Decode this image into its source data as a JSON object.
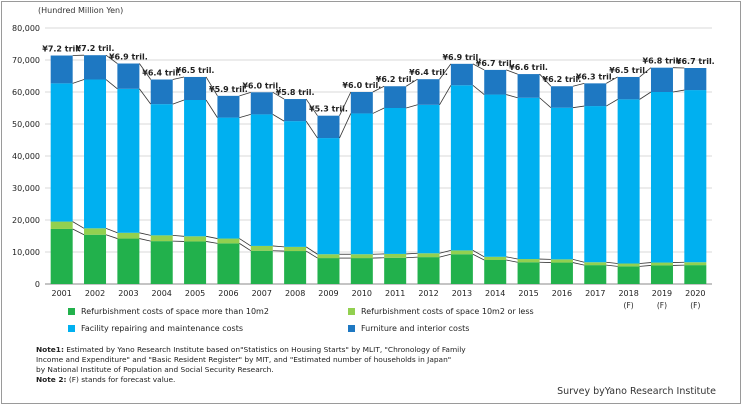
{
  "unit_label": "(Hundred  Million Yen)",
  "chart_data": {
    "type": "bar",
    "stacked": true,
    "categories": [
      "2001",
      "2002",
      "2003",
      "2004",
      "2005",
      "2006",
      "2007",
      "2008",
      "2009",
      "2010",
      "2011",
      "2012",
      "2013",
      "2014",
      "2015",
      "2016",
      "2017",
      "2018",
      "2019",
      "2020"
    ],
    "category_sublabels": [
      "",
      "",
      "",
      "",
      "",
      "",
      "",
      "",
      "",
      "",
      "",
      "",
      "",
      "",
      "",
      "",
      "",
      "(F)",
      "(F)",
      "(F)"
    ],
    "series": [
      {
        "name": "Refurbishment costs of space more than 10m2",
        "color": "#22b14c",
        "values": [
          17200,
          15400,
          14200,
          13400,
          13300,
          12700,
          10400,
          10300,
          8100,
          8100,
          8200,
          8400,
          9300,
          7500,
          6800,
          6700,
          5900,
          5500,
          5800,
          5900
        ]
      },
      {
        "name": "Refurbishment costs of space 10m2 or less",
        "color": "#92d050",
        "values": [
          2300,
          2000,
          1800,
          1800,
          1600,
          1500,
          1500,
          1300,
          1200,
          1200,
          1200,
          1200,
          1200,
          1000,
          1000,
          1000,
          900,
          900,
          900,
          900
        ]
      },
      {
        "name": "Facility repairing and maintenance costs",
        "color": "#00b0f0",
        "values": [
          43200,
          46500,
          45000,
          41000,
          42600,
          37800,
          41100,
          39300,
          36300,
          44000,
          45600,
          46400,
          51600,
          50700,
          50400,
          47400,
          48800,
          51300,
          53300,
          53800
        ]
      },
      {
        "name": "Furniture and interior costs",
        "color": "#1e78c2",
        "values": [
          8700,
          7600,
          7900,
          7700,
          7200,
          6800,
          6900,
          6900,
          7000,
          6700,
          6800,
          8000,
          6700,
          7700,
          7400,
          6700,
          7100,
          7000,
          7600,
          6900
        ]
      }
    ],
    "totals_labels": [
      "¥7.2 tril.",
      "¥7.2 tril.",
      "¥6.9 tril.",
      "¥6.4 tril.",
      "¥6.5 tril.",
      "¥5.9 tril.",
      "¥6.0 tril.",
      "¥5.8 tril.",
      "¥5.3 tril.",
      "¥6.0 tril.",
      "¥6.2 tril.",
      "¥6.4 tril.",
      "¥6.9 tril.",
      "¥6.7 tril.",
      "¥6.6 tril.",
      "¥6.2 tril.",
      "¥6.3 tril.",
      "¥6.5 tril.",
      "¥6.8 tril.",
      "¥6.7 tril."
    ],
    "ylim": [
      0,
      80000
    ],
    "yticks": [
      "0",
      "10,000",
      "20,000",
      "30,000",
      "40,000",
      "50,000",
      "60,000",
      "70,000",
      "80,000"
    ],
    "grid": true
  },
  "notes": {
    "note1_label": "Note1:",
    "note1_lines": [
      "Estimated by Yano Research Institute based on\"Statistics on Housing Starts\" by MLIT, \"Chronology of Family",
      "Income and Expenditure\" and \"Basic Resident Register\" by MIT, and \"Estimated number  of households in Japan\"",
      "by National Institute of Population and Social Security Research."
    ],
    "note2_label": "Note 2:",
    "note2_text": "(F) stands for forecast value."
  },
  "survey": "Survey byYano Research Institute"
}
